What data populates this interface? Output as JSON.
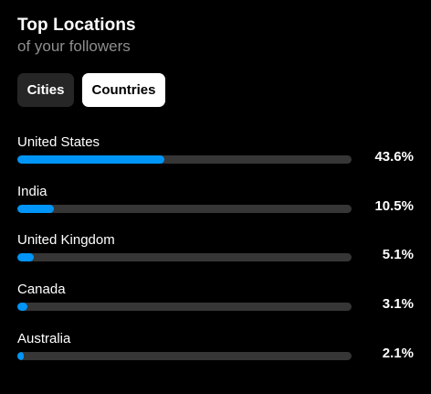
{
  "header": {
    "title": "Top Locations",
    "subtitle": "of your followers"
  },
  "tabs": [
    {
      "label": "Cities",
      "selected": false
    },
    {
      "label": "Countries",
      "selected": true
    }
  ],
  "colors": {
    "accent": "#0095f6",
    "track": "#363636",
    "background": "#000000",
    "subtitle": "#8e8e8e"
  },
  "locations": [
    {
      "name": "United States",
      "percent_label": "43.6%",
      "bar_fill_fraction": 0.44
    },
    {
      "name": "India",
      "percent_label": "10.5%",
      "bar_fill_fraction": 0.11
    },
    {
      "name": "United Kingdom",
      "percent_label": "5.1%",
      "bar_fill_fraction": 0.05
    },
    {
      "name": "Canada",
      "percent_label": "3.1%",
      "bar_fill_fraction": 0.03
    },
    {
      "name": "Australia",
      "percent_label": "2.1%",
      "bar_fill_fraction": 0.02
    }
  ]
}
